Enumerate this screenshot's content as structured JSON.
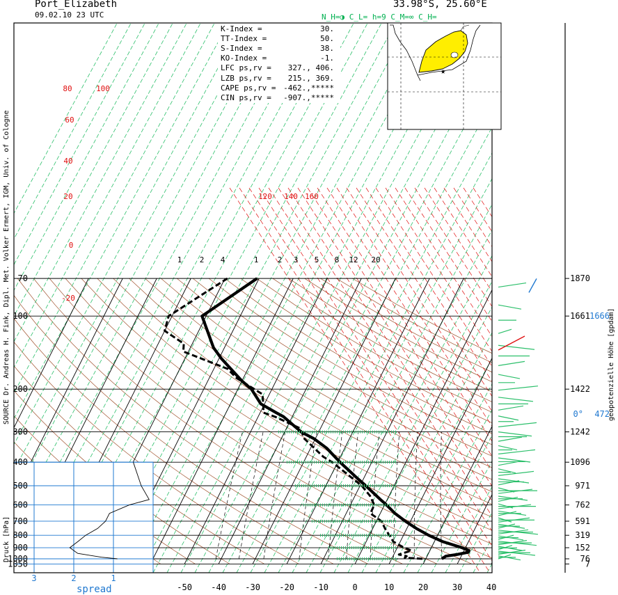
{
  "header": {
    "station": "Port_Elizabeth",
    "date_time": "09.02.10  23 UTC",
    "coords": "33.98°S, 25.60°E",
    "cloud_info": "N_H=◑  C_L=    h=9    C_M=∞   C_H="
  },
  "left_margin": "SOURCE Dr. Andreas H. Fink, Dipl. Met. Volker Ermert, IGM, Univ. of Cologne",
  "right_margin": "geopotenzielle Höhe [gpdam]",
  "indices": [
    {
      "label": "K-Index      =",
      "value": "30."
    },
    {
      "label": "TT-Index     =",
      "value": "50."
    },
    {
      "label": "S-Index      =",
      "value": "38."
    },
    {
      "label": "KO-Index     =",
      "value": "-1."
    },
    {
      "label": "LFC  ps,rv  =",
      "value": "327.,  406."
    },
    {
      "label": "LZB  ps,rv  =",
      "value": "215.,  369."
    },
    {
      "label": "CAPE ps,rv  =",
      "value": "-462.,*****"
    },
    {
      "label": "CIN  ps,rv  =",
      "value": "-907.,*****"
    }
  ],
  "chart_data": {
    "type": "line",
    "title": "Port_Elizabeth",
    "xlabel": "",
    "ylabel": "Druck [hPa]",
    "x_ticks": [
      -50,
      -40,
      -30,
      -20,
      -10,
      0,
      10,
      20,
      30,
      40
    ],
    "y_ticks": [
      70,
      100,
      200,
      300,
      400,
      500,
      600,
      700,
      800,
      900,
      1000,
      1050
    ],
    "height_ticks": [
      1870,
      1661,
      1422,
      1242,
      1096,
      971,
      762,
      591,
      319,
      152,
      76,
      7
    ],
    "height_side_labels": [
      "1666",
      "0°",
      "472"
    ],
    "spread_axis": {
      "label": "spread",
      "ticks": [
        3,
        2,
        1
      ]
    },
    "mixing_ratio_labels": [
      "1",
      "2",
      "4",
      "1",
      "2",
      "3",
      "5",
      "8",
      "12",
      "20"
    ],
    "theta_labels": [
      "80",
      "100",
      "60",
      "40",
      "20",
      "0",
      "-20"
    ],
    "theta_e_labels": [
      "120",
      "140",
      "160"
    ],
    "series": [
      {
        "name": "Temperatur",
        "style": "solid",
        "points": [
          {
            "p": 1000,
            "t": 24.7
          },
          {
            "p": 975,
            "t": 25.5
          },
          {
            "p": 960,
            "t": 28.5
          },
          {
            "p": 940,
            "t": 31.5
          },
          {
            "p": 925,
            "t": 31.5
          },
          {
            "p": 900,
            "t": 29.0
          },
          {
            "p": 850,
            "t": 22.5
          },
          {
            "p": 800,
            "t": 17.4
          },
          {
            "p": 750,
            "t": 12.8
          },
          {
            "p": 700,
            "t": 8.5
          },
          {
            "p": 650,
            "t": 4.3
          },
          {
            "p": 600,
            "t": 0.6
          },
          {
            "p": 570,
            "t": -2.0
          },
          {
            "p": 500,
            "t": -8.3
          },
          {
            "p": 460,
            "t": -12.5
          },
          {
            "p": 400,
            "t": -19.3
          },
          {
            "p": 350,
            "t": -25.3
          },
          {
            "p": 320,
            "t": -30.4
          },
          {
            "p": 300,
            "t": -35.2
          },
          {
            "p": 260,
            "t": -42.5
          },
          {
            "p": 250,
            "t": -45.3
          },
          {
            "p": 230,
            "t": -51.1
          },
          {
            "p": 200,
            "t": -56.0
          },
          {
            "p": 185,
            "t": -60.0
          },
          {
            "p": 150,
            "t": -69.2
          },
          {
            "p": 135,
            "t": -73.2
          },
          {
            "p": 100,
            "t": -81.2
          },
          {
            "p": 70,
            "t": -70.6
          }
        ]
      },
      {
        "name": "Taupunkt",
        "style": "dashed",
        "points": [
          {
            "p": 1000,
            "t": 19.0
          },
          {
            "p": 990,
            "t": 13.7
          },
          {
            "p": 975,
            "t": 14.0
          },
          {
            "p": 960,
            "t": 11.5
          },
          {
            "p": 925,
            "t": 14.6
          },
          {
            "p": 900,
            "t": 12.0
          },
          {
            "p": 850,
            "t": 8.0
          },
          {
            "p": 750,
            "t": 3.6
          },
          {
            "p": 700,
            "t": 1.5
          },
          {
            "p": 650,
            "t": -2.9
          },
          {
            "p": 600,
            "t": -3.0
          },
          {
            "p": 550,
            "t": -5.6
          },
          {
            "p": 500,
            "t": -9.5
          },
          {
            "p": 400,
            "t": -21.6
          },
          {
            "p": 380,
            "t": -25.0
          },
          {
            "p": 320,
            "t": -33.2
          },
          {
            "p": 290,
            "t": -36.0
          },
          {
            "p": 260,
            "t": -45.0
          },
          {
            "p": 250,
            "t": -49.0
          },
          {
            "p": 230,
            "t": -50.4
          },
          {
            "p": 210,
            "t": -52.0
          },
          {
            "p": 180,
            "t": -62.0
          },
          {
            "p": 165,
            "t": -66.0
          },
          {
            "p": 140,
            "t": -81.5
          },
          {
            "p": 130,
            "t": -82.5
          },
          {
            "p": 115,
            "t": -90.0
          },
          {
            "p": 100,
            "t": -91.0
          },
          {
            "p": 70,
            "t": -79.3
          }
        ]
      }
    ],
    "spread_profile": [
      {
        "p": 1000,
        "s": 0.9
      },
      {
        "p": 985,
        "s": 1.3
      },
      {
        "p": 950,
        "s": 1.9
      },
      {
        "p": 900,
        "s": 2.1
      },
      {
        "p": 850,
        "s": 1.9
      },
      {
        "p": 800,
        "s": 1.7
      },
      {
        "p": 750,
        "s": 1.4
      },
      {
        "p": 700,
        "s": 1.2
      },
      {
        "p": 650,
        "s": 1.1
      },
      {
        "p": 600,
        "s": 0.6
      },
      {
        "p": 570,
        "s": 0.1
      },
      {
        "p": 500,
        "s": 0.3
      },
      {
        "p": 400,
        "s": 0.5
      }
    ]
  }
}
